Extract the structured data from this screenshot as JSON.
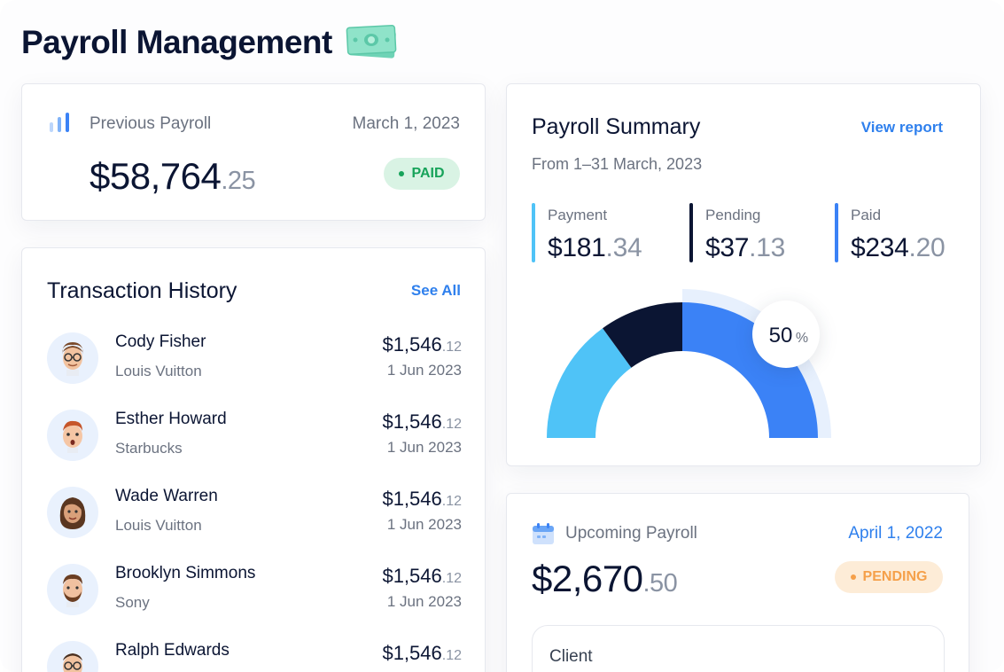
{
  "page": {
    "title": "Payroll Management",
    "title_icon": "money-bill-icon"
  },
  "previous_payroll": {
    "icon": "bar-chart-icon",
    "label": "Previous Payroll",
    "date": "March 1, 2023",
    "amount_main": "$58,764",
    "amount_cents": ".25",
    "status": "PAID",
    "status_color": "#17a35a"
  },
  "transactions": {
    "title": "Transaction History",
    "see_all": "See All",
    "items": [
      {
        "name": "Cody Fisher",
        "company": "Louis Vuitton",
        "amount_main": "$1,546",
        "amount_cents": ".12",
        "date": "1 Jun 2023",
        "avatar": "avatar-man-glasses"
      },
      {
        "name": "Esther Howard",
        "company": "Starbucks",
        "amount_main": "$1,546",
        "amount_cents": ".12",
        "date": "1 Jun 2023",
        "avatar": "avatar-surprised-man"
      },
      {
        "name": "Wade Warren",
        "company": "Louis Vuitton",
        "amount_main": "$1,546",
        "amount_cents": ".12",
        "date": "1 Jun 2023",
        "avatar": "avatar-woman"
      },
      {
        "name": "Brooklyn Simmons",
        "company": "Sony",
        "amount_main": "$1,546",
        "amount_cents": ".12",
        "date": "1 Jun 2023",
        "avatar": "avatar-man-beard"
      },
      {
        "name": "Ralph Edwards",
        "company": "",
        "amount_main": "$1,546",
        "amount_cents": ".12",
        "date": "",
        "avatar": "avatar-man-glasses"
      }
    ]
  },
  "summary": {
    "title": "Payroll Summary",
    "view_report": "View report",
    "range": "From 1–31 March, 2023",
    "stats": [
      {
        "label": "Payment",
        "amount_main": "$181",
        "amount_cents": ".34",
        "color": "#4fc3f7"
      },
      {
        "label": "Pending",
        "amount_main": "$37",
        "amount_cents": ".13",
        "color": "#0b1533"
      },
      {
        "label": "Paid",
        "amount_main": "$234",
        "amount_cents": ".20",
        "color": "#3b82f6"
      }
    ],
    "gauge": {
      "percent_value": "50",
      "percent_sign": "%",
      "segments": [
        {
          "label": "Payment",
          "fraction": 0.3,
          "color": "#4fc3f7"
        },
        {
          "label": "Pending",
          "fraction": 0.2,
          "color": "#0b1533"
        },
        {
          "label": "Paid",
          "fraction": 0.5,
          "color": "#3b82f6"
        }
      ],
      "track_color": "#e7f0fd"
    }
  },
  "upcoming": {
    "icon": "calendar-icon",
    "label": "Upcoming Payroll",
    "date": "April 1, 2022",
    "amount_main": "$2,670",
    "amount_cents": ".50",
    "status": "PENDING",
    "status_color": "#f5a04a",
    "client_label": "Client"
  }
}
